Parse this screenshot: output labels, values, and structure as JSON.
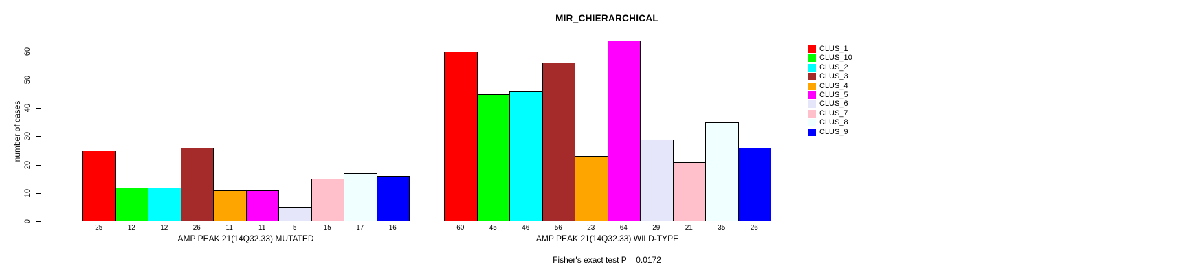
{
  "chart_data": {
    "type": "bar",
    "title": "MIR_CHIERARCHICAL",
    "ylabel": "number of cases",
    "ylim": [
      0,
      60
    ],
    "yticks": [
      0,
      10,
      20,
      30,
      40,
      50,
      60
    ],
    "grid": false,
    "legend_position": "right",
    "categories": [
      "CLUS_1",
      "CLUS_10",
      "CLUS_2",
      "CLUS_3",
      "CLUS_4",
      "CLUS_5",
      "CLUS_6",
      "CLUS_7",
      "CLUS_8",
      "CLUS_9"
    ],
    "colors": [
      "#FF0000",
      "#00FF00",
      "#00FFFF",
      "#A52A2A",
      "#FFA500",
      "#FF00FF",
      "#E6E6FA",
      "#FFC0CB",
      "#F0FFFF",
      "#0000FF"
    ],
    "groups": [
      {
        "xlabel": "AMP PEAK 21(14Q32.33) MUTATED",
        "values": [
          25,
          12,
          12,
          26,
          11,
          11,
          5,
          15,
          17,
          16
        ],
        "bar_value_labels": [
          "25",
          "12",
          "12",
          "26",
          "11",
          "11",
          "5",
          "15",
          "17",
          "16"
        ]
      },
      {
        "xlabel": "AMP PEAK 21(14Q32.33) WILD-TYPE",
        "values": [
          60,
          45,
          46,
          56,
          23,
          64,
          29,
          21,
          35,
          26
        ],
        "bar_value_labels": [
          "60",
          "45",
          "46",
          "56",
          "23",
          "64",
          "29",
          "21",
          "35",
          "26"
        ]
      }
    ],
    "legend": [
      {
        "label": "CLUS_1",
        "color": "#FF0000"
      },
      {
        "label": "CLUS_10",
        "color": "#00FF00"
      },
      {
        "label": "CLUS_2",
        "color": "#00FFFF"
      },
      {
        "label": "CLUS_3",
        "color": "#A52A2A"
      },
      {
        "label": "CLUS_4",
        "color": "#FFA500"
      },
      {
        "label": "CLUS_5",
        "color": "#FF00FF"
      },
      {
        "label": "CLUS_6",
        "color": "#E6E6FA"
      },
      {
        "label": "CLUS_7",
        "color": "#FFC0CB"
      },
      {
        "label": "CLUS_8",
        "color": "#F0FFFF"
      },
      {
        "label": "CLUS_9",
        "color": "#0000FF"
      }
    ],
    "annotation": "Fisher's exact test P = 0.0172"
  }
}
